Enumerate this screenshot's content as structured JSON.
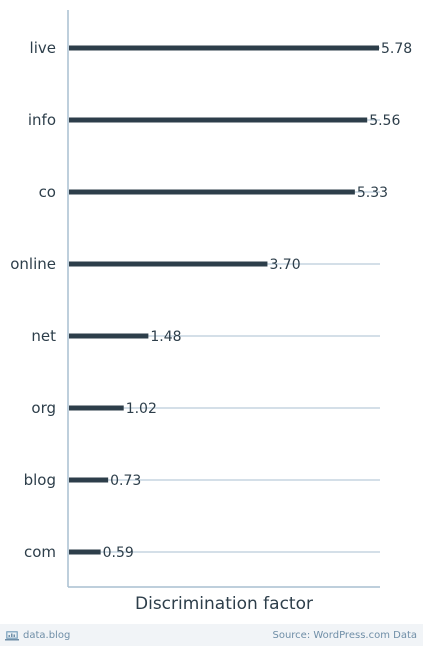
{
  "chart_data": {
    "type": "bar",
    "orientation": "horizontal",
    "categories": [
      "live",
      "info",
      "co",
      "online",
      "net",
      "org",
      "blog",
      "com"
    ],
    "values": [
      5.78,
      5.56,
      5.33,
      3.7,
      1.48,
      1.02,
      0.73,
      0.59
    ],
    "value_labels": [
      "5.78",
      "5.56",
      "5.33",
      "3.70",
      "1.48",
      "1.02",
      "0.73",
      "0.59"
    ],
    "xlabel": "Discrimination factor",
    "ylabel": "",
    "xlim": [
      0,
      5.78
    ],
    "grid": true,
    "bar_color": "#2d3e4a",
    "grid_color": "#a9bfd0"
  },
  "footer": {
    "brand_icon": "data-blog-icon",
    "brand": "data.blog",
    "source": "Source: WordPress.com Data"
  }
}
